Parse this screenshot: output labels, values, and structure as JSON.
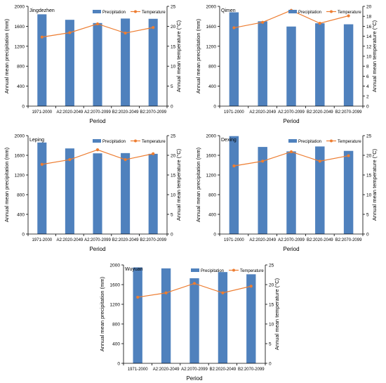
{
  "figure": {
    "x_axis_title": "Period",
    "y_left_title": "Annual mean precipitation (mm)",
    "y_right_title": "Annual mean temperature (°C)",
    "legend": {
      "bar_label": "Precipitation",
      "line_label": "Temperature",
      "placement": "top-right"
    },
    "colors": {
      "bar": "#4f81bd",
      "line": "#ed7d31",
      "axis": "#000000"
    }
  },
  "chart_data": [
    {
      "type": "bar",
      "title": "Jingdezhen",
      "categories": [
        "1971-2000",
        "A2:2020-2049",
        "A2:2070-2099",
        "B2:2020-2049",
        "B2:2070-2099"
      ],
      "series": [
        {
          "name": "Precipitation",
          "axis": "left",
          "type": "bar",
          "values": [
            1840,
            1730,
            1665,
            1755,
            1750
          ]
        },
        {
          "name": "Temperature",
          "axis": "right",
          "type": "line",
          "values": [
            17.3,
            18.4,
            20.6,
            18.3,
            19.7
          ]
        }
      ],
      "ylim_left": [
        0,
        2000
      ],
      "yticks_left": [
        0,
        400,
        800,
        1200,
        1600,
        2000
      ],
      "ylim_right": [
        0,
        25
      ],
      "yticks_right": [
        0,
        5,
        10,
        15,
        20,
        25
      ],
      "xlabel": "Period",
      "ylabel_left": "Annual mean precipitation (mm)",
      "ylabel_right": "Annual mean temperature (°C)",
      "grid": false
    },
    {
      "type": "bar",
      "title": "Qimen",
      "categories": [
        "1971-2000",
        "A2:2020-2049",
        "A2:2070-2099",
        "B2:2020-2049",
        "B2:2070-2099"
      ],
      "series": [
        {
          "name": "Precipitation",
          "axis": "left",
          "type": "bar",
          "values": [
            1880,
            1700,
            1595,
            1660,
            1640
          ]
        },
        {
          "name": "Temperature",
          "axis": "right",
          "type": "line",
          "values": [
            15.7,
            16.8,
            19.2,
            16.6,
            18.1
          ]
        }
      ],
      "ylim_left": [
        0,
        2000
      ],
      "yticks_left": [
        0,
        400,
        800,
        1200,
        1600,
        2000
      ],
      "ylim_right": [
        0,
        20
      ],
      "yticks_right": [
        0,
        2,
        4,
        6,
        8,
        10,
        12,
        14,
        16,
        18,
        20
      ],
      "xlabel": "Period",
      "ylabel_left": "Annual mean precipitation (mm)",
      "ylabel_right": "Annual mean temperature (°C)",
      "grid": false
    },
    {
      "type": "bar",
      "title": "Leping",
      "categories": [
        "1971-2000",
        "A2:2020-2049",
        "A2:2070-2099",
        "B2:2020-2049",
        "B2:2070-2099"
      ],
      "series": [
        {
          "name": "Precipitation",
          "axis": "left",
          "type": "bar",
          "values": [
            1860,
            1740,
            1640,
            1645,
            1630
          ]
        },
        {
          "name": "Temperature",
          "axis": "right",
          "type": "line",
          "values": [
            17.7,
            18.9,
            21.4,
            18.9,
            20.4
          ]
        }
      ],
      "ylim_left": [
        0,
        2000
      ],
      "yticks_left": [
        0,
        400,
        800,
        1200,
        1600,
        2000
      ],
      "ylim_right": [
        0,
        25
      ],
      "yticks_right": [
        0,
        5,
        10,
        15,
        20,
        25
      ],
      "xlabel": "Period",
      "ylabel_left": "Annual mean precipitation (mm)",
      "ylabel_right": "Annual mean temperature (°C)",
      "grid": false
    },
    {
      "type": "bar",
      "title": "Dexing",
      "categories": [
        "1971-2000",
        "A2:2020-2049",
        "A2:2070-2099",
        "B2:2020-2049",
        "B2:2070-2099"
      ],
      "series": [
        {
          "name": "Precipitation",
          "axis": "left",
          "type": "bar",
          "values": [
            1990,
            1770,
            1680,
            1780,
            1690
          ]
        },
        {
          "name": "Temperature",
          "axis": "right",
          "type": "line",
          "values": [
            17.3,
            18.5,
            20.9,
            18.5,
            19.9
          ]
        }
      ],
      "ylim_left": [
        0,
        2000
      ],
      "yticks_left": [
        0,
        400,
        800,
        1200,
        1600,
        2000
      ],
      "ylim_right": [
        0,
        25
      ],
      "yticks_right": [
        0,
        5,
        10,
        15,
        20,
        25
      ],
      "xlabel": "Period",
      "ylabel_left": "Annual mean precipitation (mm)",
      "ylabel_right": "Annual mean temperature (°C)",
      "grid": false
    },
    {
      "type": "bar",
      "title": "Wuyuan",
      "categories": [
        "1971-2000",
        "A2:2020-2049",
        "A2:2070-2099",
        "B2:2020-2049",
        "B2:2070-2099"
      ],
      "series": [
        {
          "name": "Precipitation",
          "axis": "left",
          "type": "bar",
          "values": [
            1950,
            1930,
            1730,
            1855,
            1810
          ]
        },
        {
          "name": "Temperature",
          "axis": "right",
          "type": "line",
          "values": [
            16.8,
            17.9,
            20.3,
            17.9,
            19.6
          ]
        }
      ],
      "ylim_left": [
        0,
        2000
      ],
      "yticks_left": [
        0,
        400,
        800,
        1200,
        1600,
        2000
      ],
      "ylim_right": [
        0,
        25
      ],
      "yticks_right": [
        0,
        5,
        10,
        15,
        20,
        25
      ],
      "xlabel": "Period",
      "ylabel_left": "Annual mean precipitation (mm)",
      "ylabel_right": "Annual mean temperature (°C)",
      "grid": false
    }
  ]
}
